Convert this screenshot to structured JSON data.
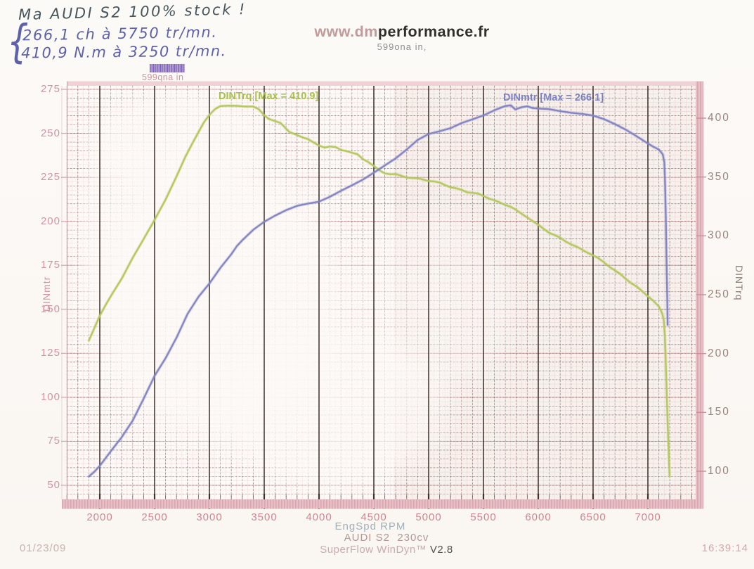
{
  "annotations": {
    "brace": "{",
    "line1": "Ma AUDI S2 100% stock !",
    "line2": "266,1 ch à 5750 tr/mn.",
    "line3": "410,9 N.m à 3250 tr/mn."
  },
  "header": {
    "title_light": "www.dm",
    "title_dark": "performance.fr",
    "subtitle": "599ona in,",
    "station_label": "599qna in"
  },
  "footer": {
    "date": "01/23/09",
    "vehicle": "AUDI S2  230cv",
    "software_name": "SuperFlow WinDyn™",
    "software_version": " V2.8",
    "time": "16:39:14"
  },
  "colors": {
    "torque_green": "#b3c659",
    "power_blue": "#7f82c2",
    "grid_pink": "#eec3c9",
    "grid_dark": "#4a372e",
    "label_pink": "#d2848e",
    "band_pink": "#e6c0c6"
  },
  "chart_data": {
    "type": "line",
    "title": "",
    "xlabel": "EngSpd  RPM",
    "x_ticks": [
      2000,
      2500,
      3000,
      3500,
      4000,
      4500,
      5000,
      5500,
      6000,
      6500,
      7000
    ],
    "x_range_rpm": [
      1700,
      7435
    ],
    "grid": {
      "minor_x_rpm": 100,
      "minor_y_left_units": 5,
      "major_x_rpm": 500
    },
    "legend_position": "top-inside",
    "left_axis": {
      "label": "DINmtr",
      "ticks": [
        275,
        250,
        225,
        200,
        175,
        150,
        125,
        100,
        75,
        50
      ],
      "range": [
        42,
        277
      ]
    },
    "right_axis": {
      "label": "DINTrq",
      "ticks": [
        400,
        350,
        300,
        250,
        200,
        150,
        100
      ],
      "range": [
        97,
        428
      ]
    },
    "peaks": {
      "power_ch": 266.1,
      "power_rpm": 5750,
      "torque_nm": 410.9,
      "torque_rpm": 3250
    },
    "series": [
      {
        "name": "DINTrq [Max = 410.9]",
        "axis": "right",
        "unit": "N.m",
        "color": "#b3c659",
        "points": [
          [
            1900,
            211
          ],
          [
            1950,
            222
          ],
          [
            2000,
            232
          ],
          [
            2060,
            242
          ],
          [
            2120,
            252
          ],
          [
            2200,
            264
          ],
          [
            2300,
            281
          ],
          [
            2400,
            297
          ],
          [
            2500,
            314
          ],
          [
            2600,
            331
          ],
          [
            2700,
            350
          ],
          [
            2780,
            367
          ],
          [
            2850,
            380
          ],
          [
            2900,
            388
          ],
          [
            2950,
            396
          ],
          [
            3000,
            403
          ],
          [
            3050,
            408
          ],
          [
            3100,
            410
          ],
          [
            3180,
            410.3
          ],
          [
            3250,
            410.9
          ],
          [
            3320,
            410.2
          ],
          [
            3400,
            409.5
          ],
          [
            3450,
            407.5
          ],
          [
            3500,
            403
          ],
          [
            3540,
            399.5
          ],
          [
            3600,
            397
          ],
          [
            3650,
            396
          ],
          [
            3700,
            391.5
          ],
          [
            3730,
            388
          ],
          [
            3780,
            386
          ],
          [
            3850,
            384
          ],
          [
            3900,
            382.5
          ],
          [
            3950,
            379
          ],
          [
            4000,
            376.5
          ],
          [
            4050,
            375.5
          ],
          [
            4100,
            376
          ],
          [
            4150,
            375
          ],
          [
            4200,
            373
          ],
          [
            4250,
            372.5
          ],
          [
            4300,
            370.5
          ],
          [
            4350,
            369
          ],
          [
            4400,
            365.5
          ],
          [
            4450,
            363
          ],
          [
            4500,
            359
          ],
          [
            4550,
            355.5
          ],
          [
            4600,
            353.5
          ],
          [
            4650,
            352.5
          ],
          [
            4700,
            352
          ],
          [
            4750,
            351
          ],
          [
            4800,
            350
          ],
          [
            4850,
            349
          ],
          [
            4900,
            348.5
          ],
          [
            4950,
            348
          ],
          [
            5000,
            347
          ],
          [
            5050,
            346
          ],
          [
            5100,
            345
          ],
          [
            5150,
            343.5
          ],
          [
            5200,
            341.5
          ],
          [
            5250,
            340
          ],
          [
            5300,
            339
          ],
          [
            5350,
            337.5
          ],
          [
            5400,
            336.5
          ],
          [
            5450,
            335.5
          ],
          [
            5500,
            334
          ],
          [
            5550,
            332
          ],
          [
            5600,
            330
          ],
          [
            5650,
            328
          ],
          [
            5700,
            326.5
          ],
          [
            5750,
            325
          ],
          [
            5800,
            321.5
          ],
          [
            5850,
            318.5
          ],
          [
            5900,
            316
          ],
          [
            5950,
            312.5
          ],
          [
            6000,
            309
          ],
          [
            6050,
            306
          ],
          [
            6100,
            303
          ],
          [
            6150,
            300.5
          ],
          [
            6200,
            298
          ],
          [
            6250,
            295.5
          ],
          [
            6300,
            293
          ],
          [
            6350,
            290.5
          ],
          [
            6400,
            288
          ],
          [
            6450,
            286
          ],
          [
            6500,
            283.5
          ],
          [
            6550,
            280.5
          ],
          [
            6600,
            277.5
          ],
          [
            6650,
            274
          ],
          [
            6700,
            270.5
          ],
          [
            6750,
            267
          ],
          [
            6800,
            263.5
          ],
          [
            6850,
            260
          ],
          [
            6900,
            256.5
          ],
          [
            6950,
            252.5
          ],
          [
            7000,
            249
          ],
          [
            7050,
            245
          ],
          [
            7100,
            239.5
          ],
          [
            7130,
            234
          ],
          [
            7145,
            229
          ],
          [
            7155,
            215
          ],
          [
            7162,
            195
          ],
          [
            7170,
            172
          ],
          [
            7178,
            148
          ],
          [
            7186,
            126
          ],
          [
            7193,
            108
          ],
          [
            7198,
            96
          ]
        ]
      },
      {
        "name": "DINmtr [Max = 266.1]",
        "axis": "left",
        "unit": "ch",
        "color": "#7f82c2",
        "points": [
          [
            1900,
            55
          ],
          [
            1950,
            58
          ],
          [
            2000,
            61
          ],
          [
            2100,
            69
          ],
          [
            2200,
            77.5
          ],
          [
            2300,
            87
          ],
          [
            2400,
            99
          ],
          [
            2500,
            112
          ],
          [
            2600,
            122.5
          ],
          [
            2700,
            134
          ],
          [
            2800,
            147
          ],
          [
            2900,
            157
          ],
          [
            3000,
            165
          ],
          [
            3100,
            173.5
          ],
          [
            3200,
            181
          ],
          [
            3250,
            186
          ],
          [
            3300,
            189.5
          ],
          [
            3400,
            195
          ],
          [
            3500,
            199.5
          ],
          [
            3600,
            203.5
          ],
          [
            3700,
            206.5
          ],
          [
            3800,
            208.5
          ],
          [
            3900,
            210
          ],
          [
            4000,
            211.5
          ],
          [
            4100,
            214
          ],
          [
            4200,
            217
          ],
          [
            4300,
            220.5
          ],
          [
            4400,
            224
          ],
          [
            4500,
            227.5
          ],
          [
            4600,
            231.5
          ],
          [
            4700,
            236
          ],
          [
            4800,
            241
          ],
          [
            4900,
            246
          ],
          [
            5000,
            249.5
          ],
          [
            5100,
            251.5
          ],
          [
            5200,
            253
          ],
          [
            5300,
            255.5
          ],
          [
            5400,
            258
          ],
          [
            5500,
            260.5
          ],
          [
            5600,
            263
          ],
          [
            5700,
            265.3
          ],
          [
            5750,
            266.1
          ],
          [
            5790,
            263.8
          ],
          [
            5850,
            264.6
          ],
          [
            5900,
            265.2
          ],
          [
            5950,
            264.6
          ],
          [
            6000,
            264.2
          ],
          [
            6100,
            263.4
          ],
          [
            6200,
            262.6
          ],
          [
            6300,
            262
          ],
          [
            6400,
            261
          ],
          [
            6500,
            259.8
          ],
          [
            6600,
            258.2
          ],
          [
            6700,
            255.5
          ],
          [
            6800,
            251.8
          ],
          [
            6900,
            248
          ],
          [
            7000,
            244.5
          ],
          [
            7050,
            242.5
          ],
          [
            7100,
            240.5
          ],
          [
            7135,
            238
          ],
          [
            7150,
            234
          ],
          [
            7158,
            220
          ],
          [
            7164,
            200
          ],
          [
            7170,
            178
          ],
          [
            7176,
            158
          ],
          [
            7180,
            141
          ]
        ]
      }
    ]
  }
}
